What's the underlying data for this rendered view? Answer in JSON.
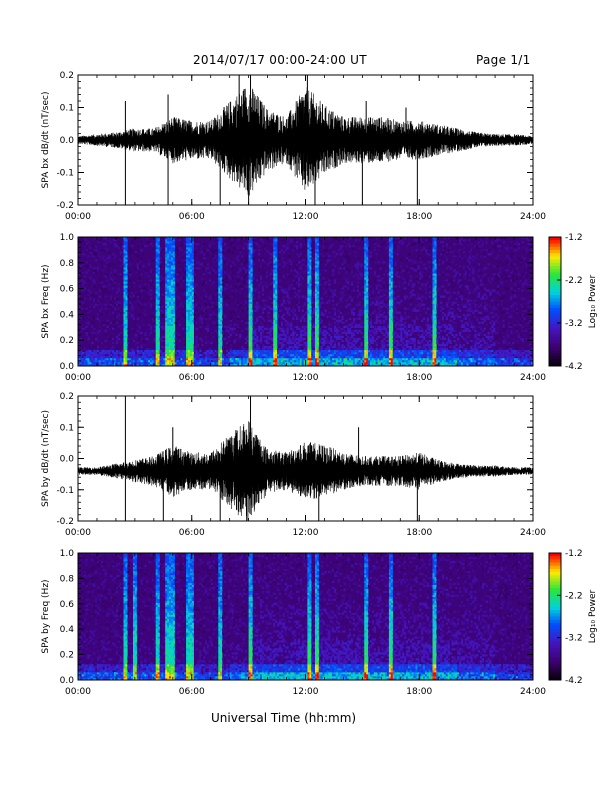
{
  "header": {
    "title": "2014/07/17  00:00-24:00 UT",
    "page": "Page 1/1"
  },
  "footer": {
    "xlabel": "Universal Time (hh:mm)"
  },
  "chart_data": [
    {
      "type": "line",
      "ylabel": "SPA bx dB/dt (nT/sec)",
      "ylim": [
        -0.2,
        0.2
      ],
      "yticks": [
        "0.2",
        "0.1",
        "0.0",
        "-0.1",
        "-0.2"
      ],
      "xticks": [
        "00:00",
        "06:00",
        "12:00",
        "18:00",
        "24:00"
      ],
      "x_hours_range": [
        0,
        24
      ],
      "baseline": 0.0,
      "envelope": {
        "x_hours": [
          0,
          1,
          2,
          3,
          4,
          5,
          6,
          7,
          8,
          9,
          10,
          11,
          12,
          13,
          14,
          15,
          16,
          17,
          18,
          19,
          20,
          21,
          22,
          23,
          24
        ],
        "amplitude": [
          0.01,
          0.015,
          0.02,
          0.03,
          0.03,
          0.06,
          0.05,
          0.05,
          0.1,
          0.15,
          0.08,
          0.06,
          0.14,
          0.09,
          0.06,
          0.06,
          0.06,
          0.05,
          0.05,
          0.04,
          0.03,
          0.02,
          0.015,
          0.015,
          0.01
        ]
      },
      "spikes": [
        {
          "x": 2.5,
          "y": -0.2
        },
        {
          "x": 2.5,
          "y": 0.12
        },
        {
          "x": 4.75,
          "y": -0.2
        },
        {
          "x": 4.75,
          "y": 0.14
        },
        {
          "x": 7.5,
          "y": -0.2
        },
        {
          "x": 8.5,
          "y": 0.2
        },
        {
          "x": 9.0,
          "y": -0.2
        },
        {
          "x": 9.1,
          "y": 0.2
        },
        {
          "x": 12.1,
          "y": 0.2
        },
        {
          "x": 12.5,
          "y": -0.2
        },
        {
          "x": 15.0,
          "y": -0.2
        },
        {
          "x": 15.2,
          "y": 0.12
        },
        {
          "x": 17.9,
          "y": -0.2
        },
        {
          "x": 17.3,
          "y": 0.1
        }
      ]
    },
    {
      "type": "heatmap",
      "ylabel": "SPA bx Freq (Hz)",
      "ylim": [
        0.0,
        1.0
      ],
      "yticks": [
        "1.0",
        "0.8",
        "0.6",
        "0.4",
        "0.2",
        "0.0"
      ],
      "xticks": [
        "00:00",
        "06:00",
        "12:00",
        "18:00",
        "24:00"
      ],
      "colorbar": {
        "label": "Log₁₀ Power",
        "ticks": [
          "-1.2",
          "-2.2",
          "-3.2",
          "-4.2"
        ],
        "range": [
          -4.2,
          -1.2
        ]
      },
      "broadband_hours": [
        2.5,
        4.2,
        4.75,
        5.0,
        5.8,
        6.0,
        7.5,
        9.1,
        10.4,
        12.2,
        12.6,
        15.2,
        16.5,
        18.8
      ]
    },
    {
      "type": "line",
      "ylabel": "SPA by dB/dt (nT/sec)",
      "ylim": [
        -0.2,
        0.2
      ],
      "yticks": [
        "0.2",
        "0.1",
        "0.0",
        "-0.1",
        "-0.2"
      ],
      "xticks": [
        "00:00",
        "06:00",
        "12:00",
        "18:00",
        "24:00"
      ],
      "x_hours_range": [
        0,
        24
      ],
      "baseline": -0.04,
      "envelope": {
        "x_hours": [
          0,
          1,
          2,
          3,
          4,
          5,
          6,
          7,
          8,
          9,
          10,
          11,
          12,
          13,
          14,
          15,
          16,
          17,
          18,
          19,
          20,
          21,
          22,
          23,
          24
        ],
        "amplitude": [
          0.01,
          0.01,
          0.02,
          0.03,
          0.04,
          0.07,
          0.05,
          0.05,
          0.1,
          0.14,
          0.06,
          0.05,
          0.08,
          0.07,
          0.05,
          0.04,
          0.04,
          0.04,
          0.05,
          0.03,
          0.02,
          0.015,
          0.015,
          0.01,
          0.01
        ]
      },
      "spikes": [
        {
          "x": 2.5,
          "y": -0.2
        },
        {
          "x": 2.5,
          "y": 0.2
        },
        {
          "x": 4.5,
          "y": -0.2
        },
        {
          "x": 5.0,
          "y": 0.1
        },
        {
          "x": 7.5,
          "y": -0.2
        },
        {
          "x": 9.1,
          "y": 0.2
        },
        {
          "x": 8.9,
          "y": -0.2
        },
        {
          "x": 12.7,
          "y": -0.2
        },
        {
          "x": 14.8,
          "y": 0.1
        },
        {
          "x": 17.9,
          "y": -0.2
        }
      ]
    },
    {
      "type": "heatmap",
      "ylabel": "SPA by Freq (Hz)",
      "ylim": [
        0.0,
        1.0
      ],
      "yticks": [
        "1.0",
        "0.8",
        "0.6",
        "0.4",
        "0.2",
        "0.0"
      ],
      "xticks": [
        "00:00",
        "06:00",
        "12:00",
        "18:00",
        "24:00"
      ],
      "colorbar": {
        "label": "Log₁₀ Power",
        "ticks": [
          "-1.2",
          "-2.2",
          "-3.2",
          "-4.2"
        ],
        "range": [
          -4.2,
          -1.2
        ]
      },
      "broadband_hours": [
        2.5,
        3.0,
        4.2,
        4.75,
        5.0,
        5.8,
        6.0,
        7.5,
        9.1,
        12.2,
        12.6,
        15.2,
        16.5,
        18.8
      ]
    }
  ]
}
